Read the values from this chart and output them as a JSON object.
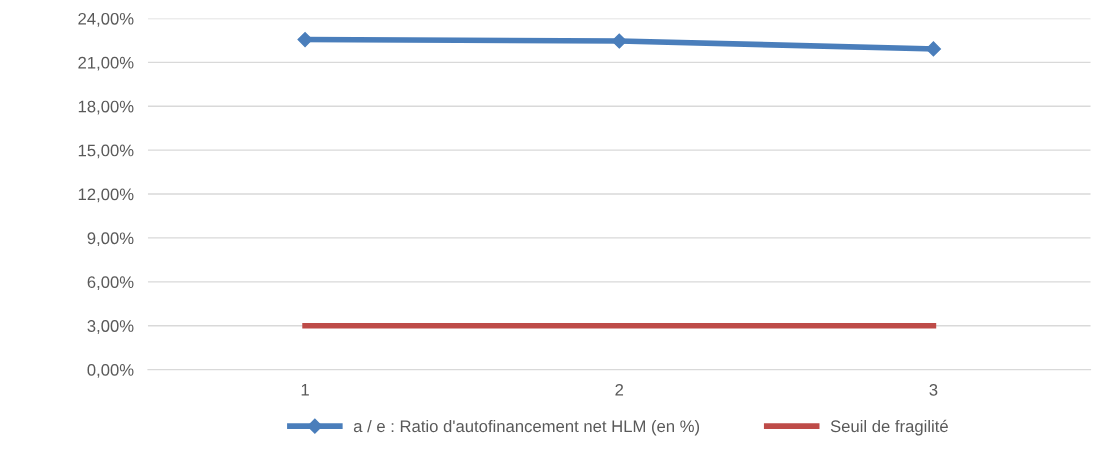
{
  "chart_data": {
    "type": "line",
    "categories": [
      "1",
      "2",
      "3"
    ],
    "series": [
      {
        "name": "a / e : Ratio d'autofinancement net HLM (en %)",
        "color": "#4a7ebb",
        "values": [
          22.56,
          22.46,
          21.92
        ],
        "marker": "diamond"
      },
      {
        "name": "Seuil de fragilité",
        "color": "#be4b48",
        "values": [
          3,
          3,
          3
        ],
        "marker": "none"
      }
    ],
    "ylim": [
      0,
      24
    ],
    "yticks": [
      {
        "value": 0,
        "label": "0,00%"
      },
      {
        "value": 3,
        "label": "3,00%"
      },
      {
        "value": 6,
        "label": "6,00%"
      },
      {
        "value": 9,
        "label": "9,00%"
      },
      {
        "value": 12,
        "label": "12,00%"
      },
      {
        "value": 15,
        "label": "15,00%"
      },
      {
        "value": 18,
        "label": "18,00%"
      },
      {
        "value": 21,
        "label": "21,00%"
      },
      {
        "value": 24,
        "label": "24,00%"
      }
    ],
    "grid": "y",
    "legend": "bottom",
    "line_style": "solid"
  }
}
